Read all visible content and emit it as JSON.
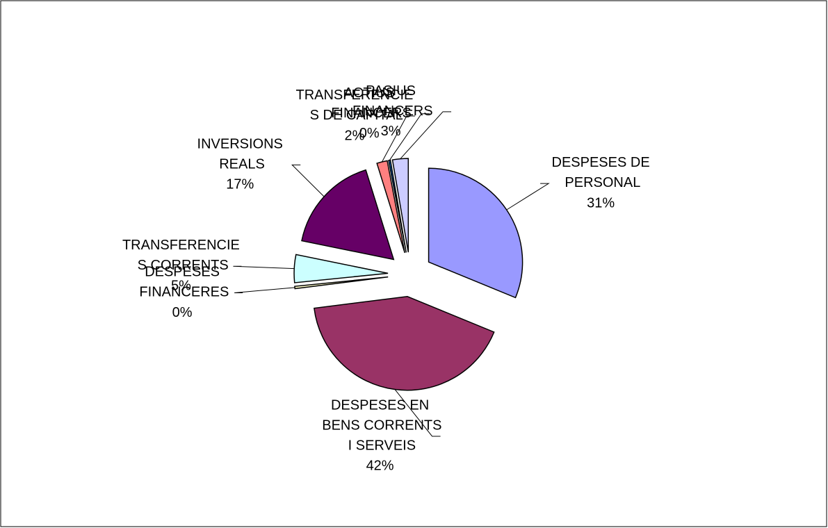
{
  "chart_data": {
    "type": "pie",
    "categories": [
      "DESPESES DE PERSONAL",
      "DESPESES EN BENS CORRENTS I SERVEIS",
      "DESPESES FINANCERES",
      "TRANSFERENCIES CORRENTS",
      "INVERSIONS REALS",
      "TRANSFERENCIES DE CAPITAL",
      "ACTIUS FINANCERS",
      "PASIUS FINANCERS"
    ],
    "values": [
      31.2,
      41.8,
      0.4,
      4.8,
      17.0,
      1.8,
      0.3,
      2.7
    ],
    "value_labels": [
      "31%",
      "42%",
      "0%",
      "5%",
      "17%",
      "2%",
      "0%",
      "3%"
    ],
    "colors": [
      "#9999ff",
      "#993366",
      "#ffffcc",
      "#ccffff",
      "#660066",
      "#ff8080",
      "#0066cc",
      "#ccccff"
    ]
  }
}
